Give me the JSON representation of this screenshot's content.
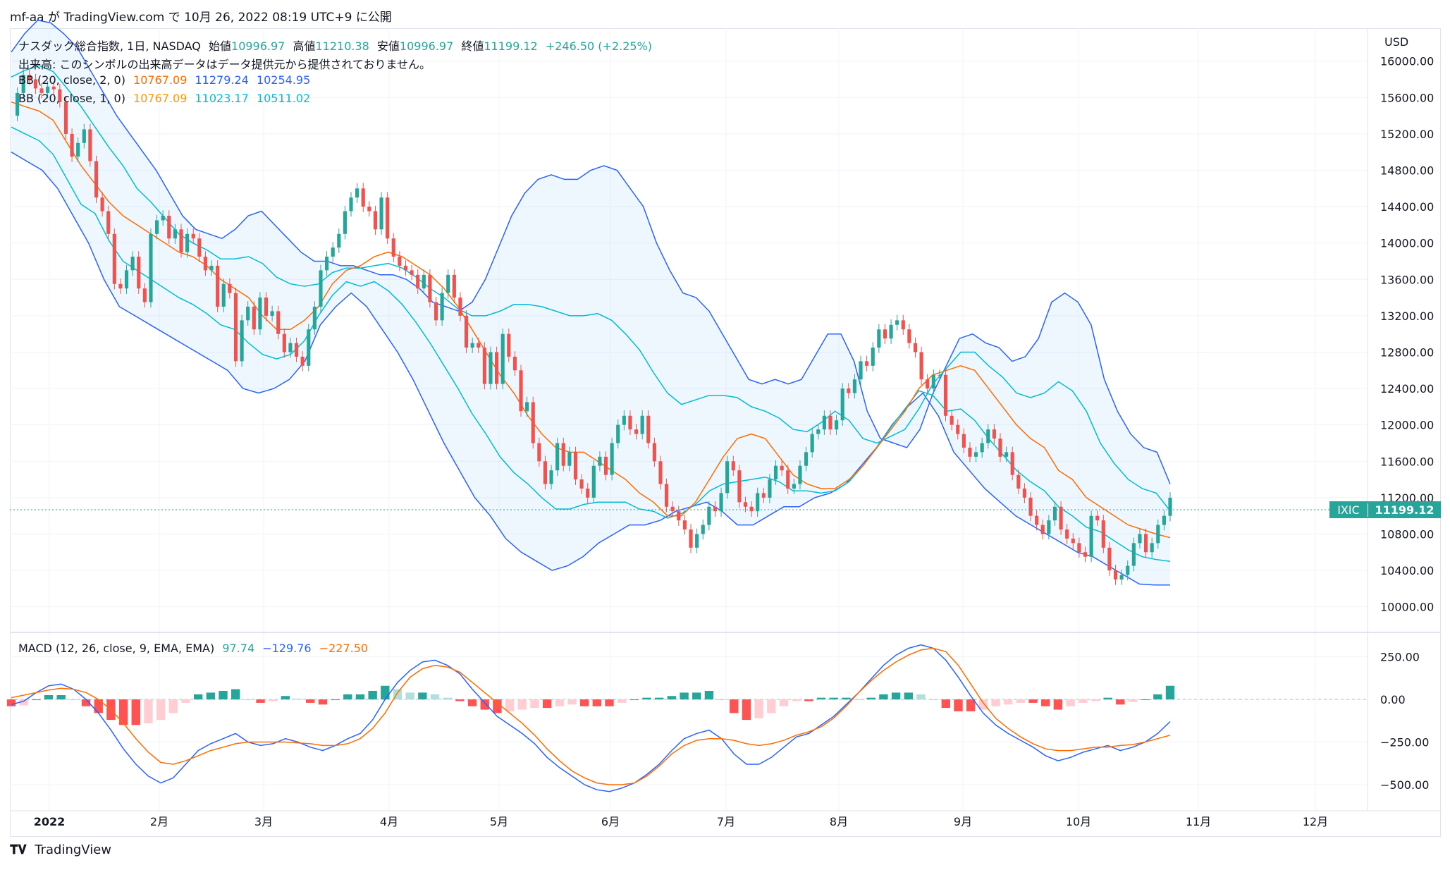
{
  "header": {
    "author": "mf-aa",
    "ga": "が",
    "site": "TradingView.com",
    "de": "で",
    "date": "10月 26, 2022 08:19 UTC+9",
    "published": "に公開"
  },
  "legend": {
    "title": "ナスダック総合指数, 1日, NASDAQ",
    "open_label": "始値",
    "open": "10996.97",
    "high_label": "高値",
    "high": "11210.38",
    "low_label": "安値",
    "low": "10996.97",
    "close_label": "終値",
    "close": "11199.12",
    "change": "+246.50 (+2.25%)",
    "volume_note": "出来高: このシンボルの出来高データはデータ提供元から提供されておりません。",
    "bb1_label": "BB (20, close, 2, 0)",
    "bb1_mid": "10767.09",
    "bb1_up": "11279.24",
    "bb1_low": "10254.95",
    "bb2_label": "BB (20, close, 1, 0)",
    "bb2_mid": "10767.09",
    "bb2_up": "11023.17",
    "bb2_low": "10511.02"
  },
  "macd_legend": {
    "label": "MACD (12, 26, close, 9, EMA, EMA)",
    "hist": "97.74",
    "macd": "−129.76",
    "signal": "−227.50"
  },
  "price_axis": {
    "currency": "USD",
    "ticks": [
      "16000.00",
      "15600.00",
      "15200.00",
      "14800.00",
      "14400.00",
      "14000.00",
      "13600.00",
      "13200.00",
      "12800.00",
      "12400.00",
      "12000.00",
      "11600.00",
      "11200.00",
      "10800.00",
      "10400.00",
      "10000.00"
    ]
  },
  "macd_axis": {
    "ticks": [
      "250.00",
      "0.00",
      "−250.00",
      "−500.00"
    ]
  },
  "time_axis": {
    "labels": [
      "2022",
      "2月",
      "3月",
      "4月",
      "5月",
      "6月",
      "7月",
      "8月",
      "9月",
      "10月",
      "11月",
      "12月"
    ]
  },
  "ticker": {
    "symbol": "IXIC",
    "price": "11199.12"
  },
  "footer": {
    "brand": "TradingView"
  },
  "colors": {
    "up": "#26a69a",
    "down": "#ef5350",
    "bb_outer": "#2962ff",
    "bb_inner": "#00bcd4",
    "bb_mid": "#ff6d00",
    "macd": "#2962ff",
    "signal": "#ff6d00"
  },
  "chart_data": [
    {
      "type": "candlestick",
      "title": "ナスダック総合指数, 1日, NASDAQ",
      "ylabel": "USD",
      "ylim": [
        9850,
        16300
      ],
      "months": [
        "2022",
        "2月",
        "3月",
        "4月",
        "5月",
        "6月",
        "7月",
        "8月",
        "9月",
        "10月",
        "11月",
        "12月"
      ],
      "close_series": [
        15400,
        15650,
        15850,
        15800,
        15700,
        15650,
        15720,
        15690,
        15550,
        15200,
        14950,
        15100,
        15250,
        14900,
        14500,
        14350,
        14100,
        13550,
        13500,
        13700,
        13850,
        13500,
        13350,
        14100,
        14250,
        14300,
        14050,
        14150,
        13900,
        14100,
        14050,
        13850,
        13700,
        13750,
        13300,
        13550,
        13450,
        12700,
        13150,
        13300,
        13050,
        13400,
        13200,
        13250,
        13000,
        12800,
        12900,
        12750,
        12650,
        13050,
        13300,
        13700,
        13850,
        13950,
        14100,
        14350,
        14500,
        14600,
        14400,
        14350,
        14150,
        14500,
        14050,
        13850,
        13750,
        13700,
        13650,
        13500,
        13650,
        13350,
        13150,
        13450,
        13650,
        13400,
        13200,
        12850,
        12900,
        12850,
        12450,
        12800,
        12450,
        13000,
        12750,
        12600,
        12150,
        12250,
        11800,
        11600,
        11350,
        11500,
        11800,
        11550,
        11700,
        11400,
        11300,
        11200,
        11550,
        11650,
        11450,
        11800,
        12000,
        12100,
        11950,
        11900,
        12100,
        11800,
        11600,
        11350,
        11100,
        11050,
        10950,
        10850,
        10650,
        10800,
        10900,
        11100,
        11050,
        11250,
        11600,
        11500,
        11150,
        11100,
        11050,
        11250,
        11200,
        11400,
        11550,
        11500,
        11300,
        11350,
        11550,
        11700,
        11900,
        11950,
        12100,
        11950,
        12050,
        12400,
        12350,
        12500,
        12700,
        12650,
        12850,
        13050,
        12950,
        13100,
        13150,
        13050,
        12900,
        12800,
        12500,
        12400,
        12550,
        12550,
        12100,
        12000,
        11900,
        11750,
        11650,
        11700,
        11800,
        11950,
        11850,
        11650,
        11700,
        11450,
        11300,
        11200,
        11000,
        10900,
        10800,
        10950,
        11100,
        10850,
        10750,
        10700,
        10600,
        10550,
        11000,
        10950,
        10650,
        10400,
        10300,
        10350,
        10450,
        10700,
        10800,
        10600,
        10700,
        10900,
        11000,
        11199.12
      ],
      "bb_upper_2sd": [
        16100,
        16300,
        16450,
        16420,
        16300,
        16150,
        15900,
        15650,
        15400,
        15200,
        15000,
        14800,
        14550,
        14300,
        14150,
        14100,
        14050,
        14150,
        14300,
        14350,
        14200,
        14050,
        13900,
        13800,
        13800,
        13750,
        13750,
        13700,
        13650,
        13650,
        13600,
        13500,
        13350,
        13300,
        13250,
        13350,
        13600,
        13950,
        14300,
        14550,
        14700,
        14750,
        14700,
        14700,
        14800,
        14850,
        14800,
        14600,
        14400,
        14000,
        13700,
        13450,
        13400,
        13250,
        13000,
        12750,
        12500,
        12450,
        12500,
        12450,
        12500,
        12750,
        13000,
        13000,
        12700,
        12150,
        11850,
        11800,
        11750,
        11950,
        12350,
        12650,
        12950,
        13000,
        12900,
        12850,
        12700,
        12750,
        12950,
        13350,
        13450,
        13350,
        13100,
        12500,
        12150,
        11900,
        11750,
        11700,
        11350
      ],
      "bb_mid": [
        15550,
        15500,
        15450,
        15350,
        15100,
        14850,
        14650,
        14450,
        14300,
        14200,
        14100,
        14000,
        13900,
        13850,
        13750,
        13600,
        13500,
        13400,
        13200,
        13050,
        13050,
        13150,
        13300,
        13550,
        13700,
        13750,
        13850,
        13900,
        13850,
        13750,
        13650,
        13500,
        13300,
        13050,
        12800,
        12550,
        12350,
        12100,
        11900,
        11750,
        11700,
        11700,
        11600,
        11500,
        11400,
        11250,
        11150,
        11000,
        11000,
        11150,
        11400,
        11650,
        11850,
        11900,
        11850,
        11650,
        11450,
        11350,
        11300,
        11300,
        11400,
        11550,
        11750,
        11950,
        12150,
        12400,
        12550,
        12600,
        12650,
        12600,
        12400,
        12200,
        12000,
        11850,
        11750,
        11500,
        11400,
        11200,
        11100,
        11000,
        10900,
        10850,
        10800,
        10760
      ],
      "bb_lower_2sd": [
        15000,
        14900,
        14800,
        14600,
        14300,
        14000,
        13600,
        13300,
        13200,
        13100,
        13000,
        12900,
        12800,
        12700,
        12600,
        12400,
        12350,
        12400,
        12500,
        12700,
        13100,
        13300,
        13450,
        13300,
        13050,
        12800,
        12500,
        12150,
        11800,
        11500,
        11200,
        11000,
        10750,
        10600,
        10500,
        10400,
        10450,
        10550,
        10700,
        10800,
        10900,
        10900,
        10950,
        11050,
        11100,
        11150,
        11050,
        10900,
        10900,
        11000,
        11100,
        11100,
        11200,
        11250,
        11350,
        11550,
        11750,
        12000,
        12200,
        12350,
        12100,
        11700,
        11500,
        11300,
        11150,
        11000,
        10900,
        10800,
        10700,
        10600,
        10550,
        10450,
        10350,
        10250,
        10240,
        10240
      ]
    },
    {
      "type": "macd",
      "title": "MACD (12, 26, close, 9, EMA, EMA)",
      "ylim": [
        -620,
        360
      ],
      "macd_line": [
        -30,
        -10,
        40,
        80,
        90,
        60,
        0,
        -80,
        -180,
        -290,
        -380,
        -450,
        -490,
        -460,
        -380,
        -300,
        -260,
        -230,
        -200,
        -250,
        -270,
        -260,
        -230,
        -250,
        -280,
        -300,
        -270,
        -230,
        -200,
        -120,
        0,
        100,
        170,
        220,
        230,
        200,
        150,
        60,
        -20,
        -100,
        -150,
        -200,
        -260,
        -340,
        -400,
        -450,
        -500,
        -530,
        -540,
        -520,
        -490,
        -440,
        -380,
        -300,
        -230,
        -200,
        -180,
        -230,
        -320,
        -380,
        -380,
        -340,
        -280,
        -220,
        -200,
        -150,
        -100,
        -30,
        40,
        120,
        200,
        260,
        300,
        320,
        300,
        230,
        130,
        20,
        -80,
        -150,
        -200,
        -240,
        -280,
        -330,
        -360,
        -340,
        -310,
        -290,
        -270,
        -300,
        -280,
        -250,
        -200,
        -130
      ],
      "signal_line": [
        10,
        25,
        40,
        55,
        65,
        60,
        40,
        0,
        -60,
        -140,
        -230,
        -310,
        -370,
        -380,
        -360,
        -330,
        -300,
        -280,
        -260,
        -250,
        -250,
        -250,
        -250,
        -255,
        -260,
        -270,
        -270,
        -260,
        -230,
        -170,
        -80,
        40,
        130,
        180,
        200,
        190,
        160,
        100,
        40,
        -20,
        -80,
        -140,
        -210,
        -290,
        -360,
        -420,
        -460,
        -490,
        -500,
        -500,
        -490,
        -450,
        -390,
        -320,
        -270,
        -240,
        -230,
        -230,
        -240,
        -260,
        -270,
        -260,
        -240,
        -210,
        -190,
        -160,
        -110,
        -40,
        40,
        110,
        170,
        220,
        260,
        290,
        300,
        280,
        200,
        90,
        -20,
        -110,
        -170,
        -220,
        -260,
        -290,
        -300,
        -300,
        -290,
        -280,
        -280,
        -270,
        -265,
        -250,
        -230,
        -210
      ]
    }
  ]
}
